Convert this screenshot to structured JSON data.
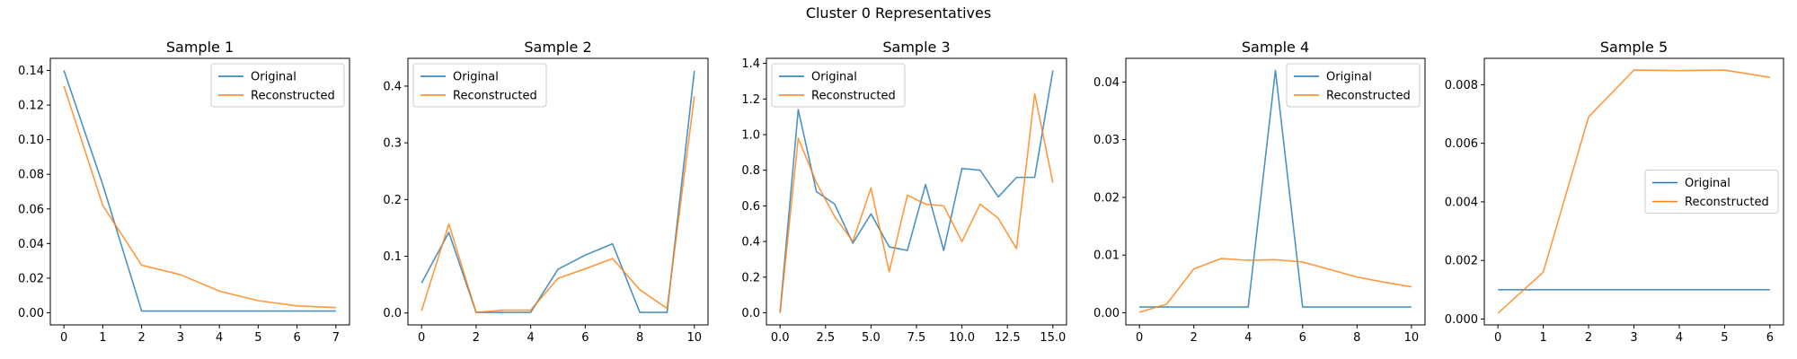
{
  "figure": {
    "suptitle": "Cluster 0 Representatives"
  },
  "colors": {
    "original": "#1f77b4",
    "reconstructed": "#ff7f0e"
  },
  "legend_labels": [
    "Original",
    "Reconstructed"
  ],
  "chart_data": [
    {
      "type": "line",
      "title": "Sample 1",
      "xlim": [
        -0.35,
        7.35
      ],
      "ylim": [
        -0.007,
        0.147
      ],
      "xticks": [
        0,
        1,
        2,
        3,
        4,
        5,
        6,
        7
      ],
      "xtick_labels": [
        "0",
        "1",
        "2",
        "3",
        "4",
        "5",
        "6",
        "7"
      ],
      "yticks": [
        0,
        0.02,
        0.04,
        0.06,
        0.08,
        0.1,
        0.12,
        0.14
      ],
      "ytick_labels": [
        "0.00",
        "0.02",
        "0.04",
        "0.06",
        "0.08",
        "0.10",
        "0.12",
        "0.14"
      ],
      "legend": "upper right",
      "series": [
        {
          "name": "Original",
          "x": [
            0,
            1,
            2,
            3,
            4,
            5,
            6,
            7
          ],
          "y": [
            0.14,
            0.074,
            0.001,
            0.001,
            0.001,
            0.001,
            0.001,
            0.001
          ]
        },
        {
          "name": "Reconstructed",
          "x": [
            0,
            1,
            2,
            3,
            4,
            5,
            6,
            7
          ],
          "y": [
            0.131,
            0.062,
            0.0275,
            0.022,
            0.0125,
            0.007,
            0.004,
            0.003
          ]
        }
      ]
    },
    {
      "type": "line",
      "title": "Sample 2",
      "xlim": [
        -0.5,
        10.5
      ],
      "ylim": [
        -0.021,
        0.449
      ],
      "xticks": [
        0,
        2,
        4,
        6,
        8,
        10
      ],
      "xtick_labels": [
        "0",
        "2",
        "4",
        "6",
        "8",
        "10"
      ],
      "yticks": [
        0,
        0.1,
        0.2,
        0.3,
        0.4
      ],
      "ytick_labels": [
        "0.0",
        "0.1",
        "0.2",
        "0.3",
        "0.4"
      ],
      "legend": "upper left",
      "series": [
        {
          "name": "Original",
          "x": [
            0,
            1,
            2,
            3,
            4,
            5,
            6,
            7,
            8,
            9,
            10
          ],
          "y": [
            0.053,
            0.142,
            0.001,
            0.001,
            0.001,
            0.077,
            0.102,
            0.122,
            0.001,
            0.001,
            0.427
          ]
        },
        {
          "name": "Reconstructed",
          "x": [
            0,
            1,
            2,
            3,
            4,
            5,
            6,
            7,
            8,
            9,
            10
          ],
          "y": [
            0.004,
            0.157,
            0.001,
            0.005,
            0.005,
            0.061,
            0.078,
            0.096,
            0.041,
            0.008,
            0.382
          ]
        }
      ]
    },
    {
      "type": "line",
      "title": "Sample 3",
      "xlim": [
        -0.75,
        15.75
      ],
      "ylim": [
        -0.068,
        1.428
      ],
      "xticks": [
        0,
        2.5,
        5,
        7.5,
        10,
        12.5,
        15
      ],
      "xtick_labels": [
        "0.0",
        "2.5",
        "5.0",
        "7.5",
        "10.0",
        "12.5",
        "15.0"
      ],
      "yticks": [
        0,
        0.2,
        0.4,
        0.6,
        0.8,
        1.0,
        1.2,
        1.4
      ],
      "ytick_labels": [
        "0.0",
        "0.2",
        "0.4",
        "0.6",
        "0.8",
        "1.0",
        "1.2",
        "1.4"
      ],
      "legend": "upper left",
      "series": [
        {
          "name": "Original",
          "x": [
            0,
            1,
            2,
            3,
            4,
            5,
            6,
            7,
            8,
            9,
            10,
            11,
            12,
            13,
            14,
            15
          ],
          "y": [
            0.0,
            1.14,
            0.68,
            0.61,
            0.39,
            0.555,
            0.37,
            0.35,
            0.72,
            0.35,
            0.81,
            0.8,
            0.65,
            0.76,
            0.76,
            1.36
          ]
        },
        {
          "name": "Reconstructed",
          "x": [
            0,
            1,
            2,
            3,
            4,
            5,
            6,
            7,
            8,
            9,
            10,
            11,
            12,
            13,
            14,
            15
          ],
          "y": [
            0.0,
            0.98,
            0.73,
            0.54,
            0.4,
            0.7,
            0.23,
            0.66,
            0.61,
            0.6,
            0.4,
            0.61,
            0.53,
            0.36,
            1.23,
            0.73
          ]
        }
      ]
    },
    {
      "type": "line",
      "title": "Sample 4",
      "xlim": [
        -0.5,
        10.5
      ],
      "ylim": [
        -0.0021,
        0.0441
      ],
      "xticks": [
        0,
        2,
        4,
        6,
        8,
        10
      ],
      "xtick_labels": [
        "0",
        "2",
        "4",
        "6",
        "8",
        "10"
      ],
      "yticks": [
        0,
        0.01,
        0.02,
        0.03,
        0.04
      ],
      "ytick_labels": [
        "0.00",
        "0.01",
        "0.02",
        "0.03",
        "0.04"
      ],
      "legend": "upper right",
      "series": [
        {
          "name": "Original",
          "x": [
            0,
            1,
            2,
            3,
            4,
            5,
            6,
            7,
            8,
            9,
            10
          ],
          "y": [
            0.001,
            0.001,
            0.001,
            0.001,
            0.001,
            0.042,
            0.001,
            0.001,
            0.001,
            0.001,
            0.001
          ]
        },
        {
          "name": "Reconstructed",
          "x": [
            0,
            1,
            2,
            3,
            4,
            5,
            6,
            7,
            8,
            9,
            10
          ],
          "y": [
            0.0001,
            0.0015,
            0.0076,
            0.0094,
            0.0091,
            0.0092,
            0.0088,
            0.0075,
            0.0062,
            0.0053,
            0.0045
          ]
        }
      ]
    },
    {
      "type": "line",
      "title": "Sample 5",
      "xlim": [
        -0.3,
        6.3
      ],
      "ylim": [
        -0.0002,
        0.0089
      ],
      "xticks": [
        0,
        1,
        2,
        3,
        4,
        5,
        6
      ],
      "xtick_labels": [
        "0",
        "1",
        "2",
        "3",
        "4",
        "5",
        "6"
      ],
      "yticks": [
        0,
        0.002,
        0.004,
        0.006,
        0.008
      ],
      "ytick_labels": [
        "0.000",
        "0.002",
        "0.004",
        "0.006",
        "0.008"
      ],
      "legend": "center right",
      "series": [
        {
          "name": "Original",
          "x": [
            0,
            1,
            2,
            3,
            4,
            5,
            6
          ],
          "y": [
            0.001,
            0.001,
            0.001,
            0.001,
            0.001,
            0.001,
            0.001
          ]
        },
        {
          "name": "Reconstructed",
          "x": [
            0,
            1,
            2,
            3,
            4,
            5,
            6
          ],
          "y": [
            0.0002,
            0.0016,
            0.0069,
            0.0085,
            0.00848,
            0.0085,
            0.00825
          ]
        }
      ]
    }
  ]
}
